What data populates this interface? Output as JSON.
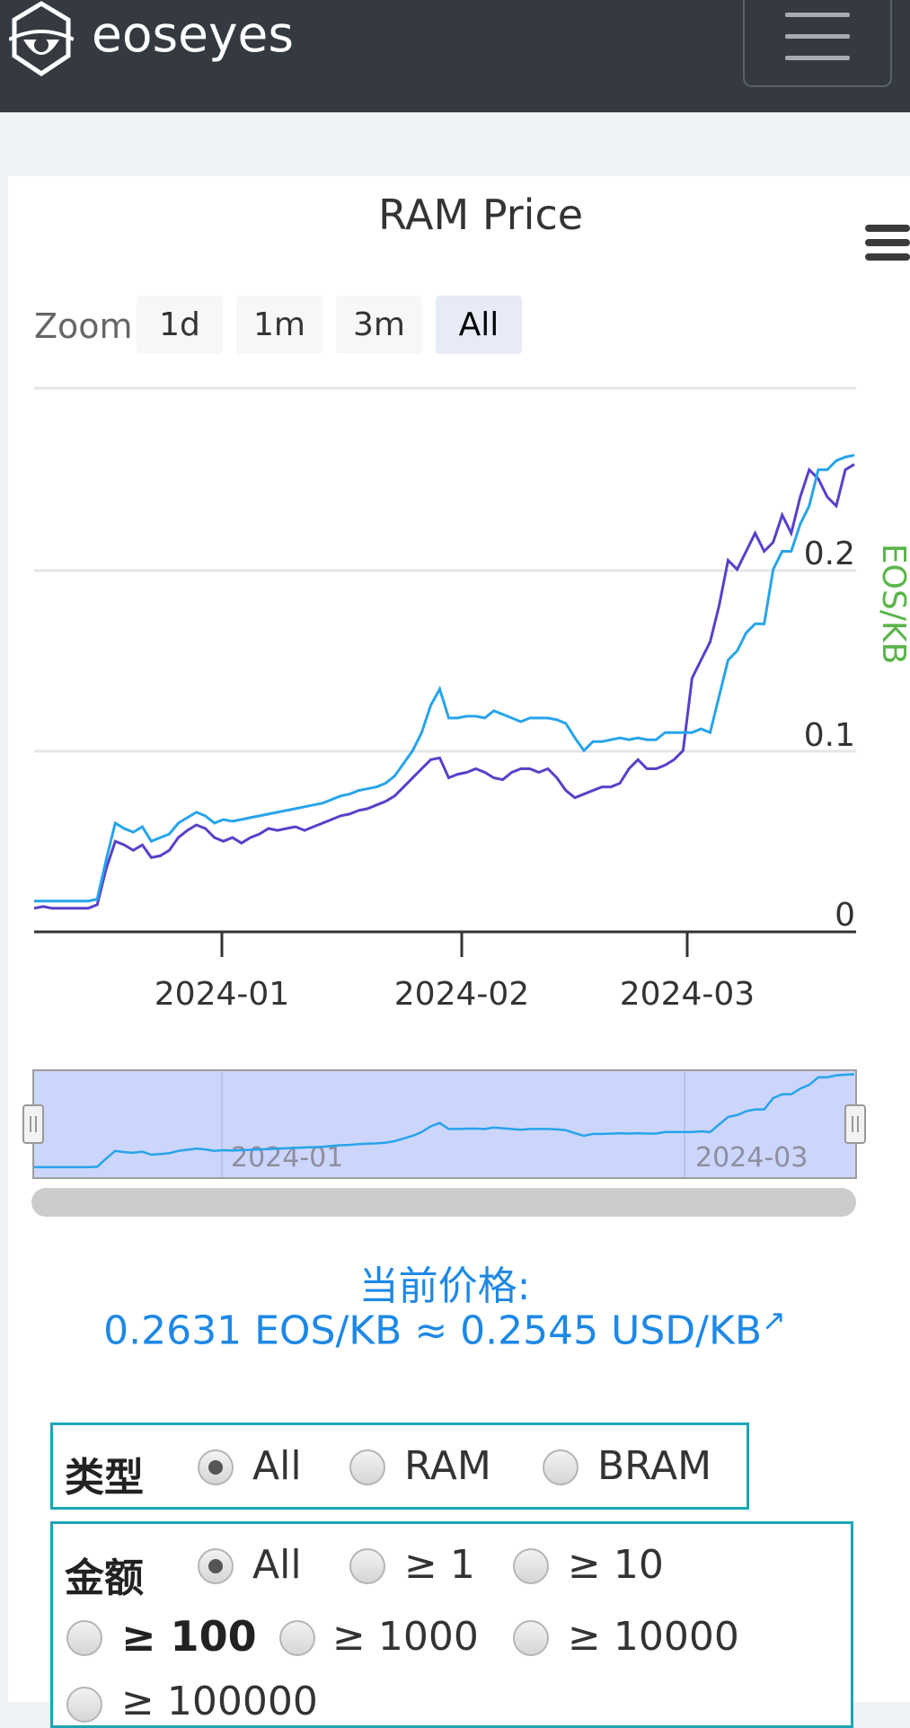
{
  "header": {
    "brand": "eoseyes",
    "logo_icon": "shield-eye-logo-icon",
    "menu_icon": "hamburger-menu-icon"
  },
  "chart": {
    "zoom_label": "Zoom",
    "zoom_buttons": [
      "1d",
      "1m",
      "3m",
      "All"
    ],
    "active_zoom": "All",
    "menu_icon": "context-menu-icon"
  },
  "chart_data": {
    "type": "line",
    "title": "RAM Price",
    "xlabel": "",
    "ylabel": "EOS/KB",
    "x_ticks": [
      "2024-01",
      "2024-02",
      "2024-03"
    ],
    "y_ticks": [
      "0",
      "0.1",
      "0.2"
    ],
    "ylim": [
      0,
      0.3
    ],
    "grid": true,
    "navigator_ticks": [
      "2024-01",
      "2024-03"
    ],
    "colors": {
      "series_a": "#27a4ea",
      "series_b": "#5a3fc9",
      "y_axis_title": "#5ab54a"
    },
    "series": [
      {
        "values": [
          0.017,
          0.017,
          0.017,
          0.017,
          0.017,
          0.017,
          0.017,
          0.018,
          0.04,
          0.06,
          0.057,
          0.055,
          0.058,
          0.05,
          0.052,
          0.054,
          0.06,
          0.063,
          0.066,
          0.064,
          0.06,
          0.062,
          0.061,
          0.062,
          0.063,
          0.064,
          0.065,
          0.066,
          0.067,
          0.068,
          0.069,
          0.07,
          0.071,
          0.073,
          0.075,
          0.076,
          0.078,
          0.079,
          0.08,
          0.082,
          0.086,
          0.093,
          0.1,
          0.11,
          0.125,
          0.134,
          0.118,
          0.118,
          0.119,
          0.119,
          0.118,
          0.122,
          0.12,
          0.118,
          0.116,
          0.118,
          0.118,
          0.118,
          0.117,
          0.115,
          0.107,
          0.1,
          0.105,
          0.105,
          0.106,
          0.107,
          0.106,
          0.107,
          0.106,
          0.106,
          0.11,
          0.11,
          0.11,
          0.11,
          0.112,
          0.11,
          0.13,
          0.15,
          0.155,
          0.165,
          0.17,
          0.17,
          0.2,
          0.21,
          0.21,
          0.225,
          0.235,
          0.255,
          0.255,
          0.26,
          0.262,
          0.263
        ]
      },
      {
        "values": [
          0.013,
          0.014,
          0.013,
          0.013,
          0.013,
          0.013,
          0.013,
          0.015,
          0.035,
          0.05,
          0.048,
          0.045,
          0.048,
          0.041,
          0.042,
          0.045,
          0.052,
          0.056,
          0.059,
          0.057,
          0.052,
          0.05,
          0.052,
          0.049,
          0.052,
          0.054,
          0.057,
          0.056,
          0.057,
          0.058,
          0.056,
          0.058,
          0.06,
          0.062,
          0.064,
          0.065,
          0.067,
          0.068,
          0.07,
          0.072,
          0.075,
          0.08,
          0.085,
          0.09,
          0.095,
          0.096,
          0.085,
          0.087,
          0.088,
          0.09,
          0.088,
          0.085,
          0.084,
          0.088,
          0.09,
          0.09,
          0.088,
          0.09,
          0.085,
          0.078,
          0.074,
          0.076,
          0.078,
          0.08,
          0.08,
          0.082,
          0.09,
          0.095,
          0.09,
          0.09,
          0.092,
          0.095,
          0.1,
          0.14,
          0.15,
          0.16,
          0.18,
          0.205,
          0.2,
          0.21,
          0.22,
          0.21,
          0.215,
          0.23,
          0.22,
          0.24,
          0.255,
          0.25,
          0.24,
          0.235,
          0.255,
          0.258
        ]
      }
    ]
  },
  "current_price": {
    "heading": "当前价格:",
    "value": "0.2631 EOS/KB ≈ 0.2545 USD/KB",
    "link_icon": "↗"
  },
  "filters": {
    "type_label": "类型",
    "type_options": [
      "All",
      "RAM",
      "BRAM"
    ],
    "amount_label": "金额",
    "amount_options": [
      "All",
      "≥ 1",
      "≥ 10",
      "≥ 100",
      "≥ 1000",
      "≥ 10000",
      "≥ 100000"
    ]
  }
}
